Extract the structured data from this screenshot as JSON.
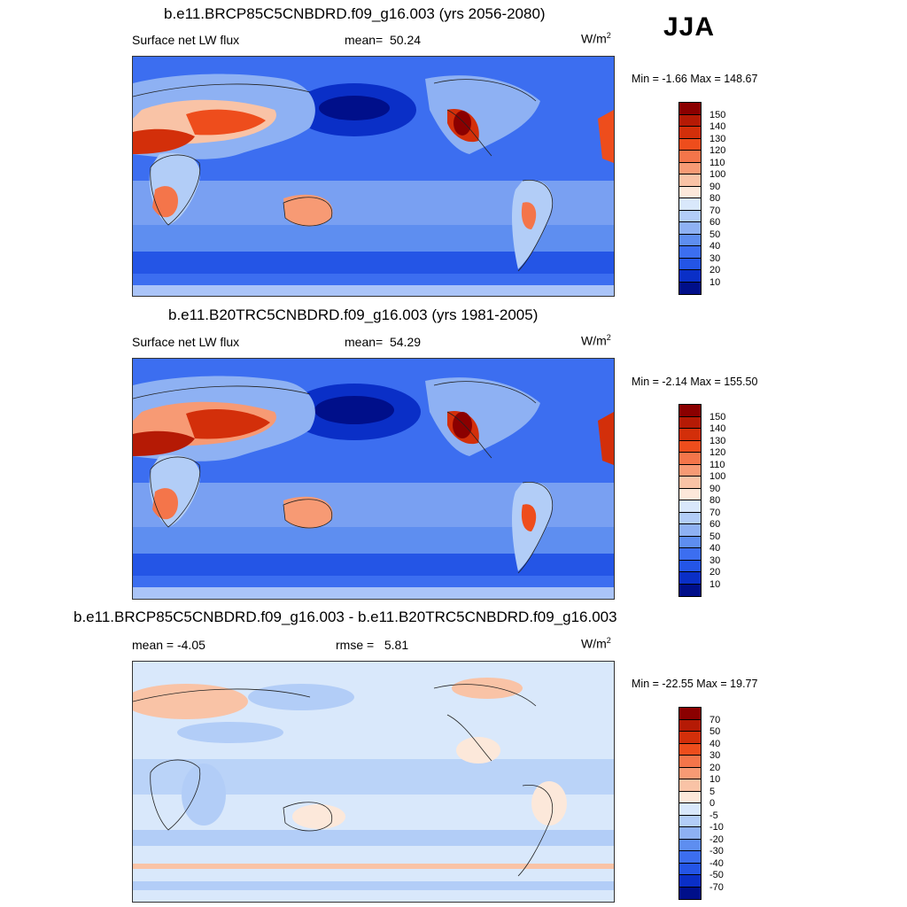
{
  "season": "JJA",
  "units_base": "W/m",
  "units_sup": "2",
  "panels": [
    {
      "title": "b.e11.BRCP85C5CNBDRD.f09_g16.003 (yrs 2056-2080)",
      "left_label": "Surface net LW flux",
      "stat_label": "mean=",
      "stat_value": "50.24",
      "minmax": "Min =  -1.66 Max = 148.67",
      "colorbar": {
        "ticks": [
          "150",
          "140",
          "130",
          "120",
          "110",
          "100",
          "90",
          "80",
          "70",
          "60",
          "50",
          "40",
          "30",
          "20",
          "10"
        ],
        "colors": [
          "#8b0000",
          "#b51a05",
          "#d32f0a",
          "#ee4d1c",
          "#f4754a",
          "#f79a74",
          "#f9c3a6",
          "#fce8da",
          "#d9e8fb",
          "#b2cdf7",
          "#8eb1f3",
          "#5e8ef0",
          "#3c6ef0",
          "#2455e6",
          "#0a2fc7",
          "#000f8a"
        ]
      }
    },
    {
      "title": "b.e11.B20TRC5CNBDRD.f09_g16.003 (yrs 1981-2005)",
      "left_label": "Surface net LW flux",
      "stat_label": "mean=",
      "stat_value": "54.29",
      "minmax": "Min =  -2.14 Max = 155.50",
      "colorbar": {
        "ticks": [
          "150",
          "140",
          "130",
          "120",
          "110",
          "100",
          "90",
          "80",
          "70",
          "60",
          "50",
          "40",
          "30",
          "20",
          "10"
        ],
        "colors": [
          "#8b0000",
          "#b51a05",
          "#d32f0a",
          "#ee4d1c",
          "#f4754a",
          "#f79a74",
          "#f9c3a6",
          "#fce8da",
          "#d9e8fb",
          "#b2cdf7",
          "#8eb1f3",
          "#5e8ef0",
          "#3c6ef0",
          "#2455e6",
          "#0a2fc7",
          "#000f8a"
        ]
      }
    },
    {
      "title": "b.e11.BRCP85C5CNBDRD.f09_g16.003 - b.e11.B20TRC5CNBDRD.f09_g16.003",
      "left_label": "mean =  -4.05",
      "stat_label": "rmse =",
      "stat_value": "5.81",
      "minmax": "Min = -22.55 Max =  19.77",
      "colorbar": {
        "ticks": [
          "70",
          "50",
          "40",
          "30",
          "20",
          "10",
          "5",
          "0",
          "-5",
          "-10",
          "-20",
          "-30",
          "-40",
          "-50",
          "-70"
        ],
        "colors": [
          "#8b0000",
          "#b51a05",
          "#d32f0a",
          "#ee4d1c",
          "#f4754a",
          "#f79a74",
          "#f9c3a6",
          "#fce8da",
          "#d9e8fb",
          "#b2cdf7",
          "#8eb1f3",
          "#5e8ef0",
          "#3c6ef0",
          "#2455e6",
          "#0a2fc7",
          "#000f8a"
        ]
      }
    }
  ]
}
